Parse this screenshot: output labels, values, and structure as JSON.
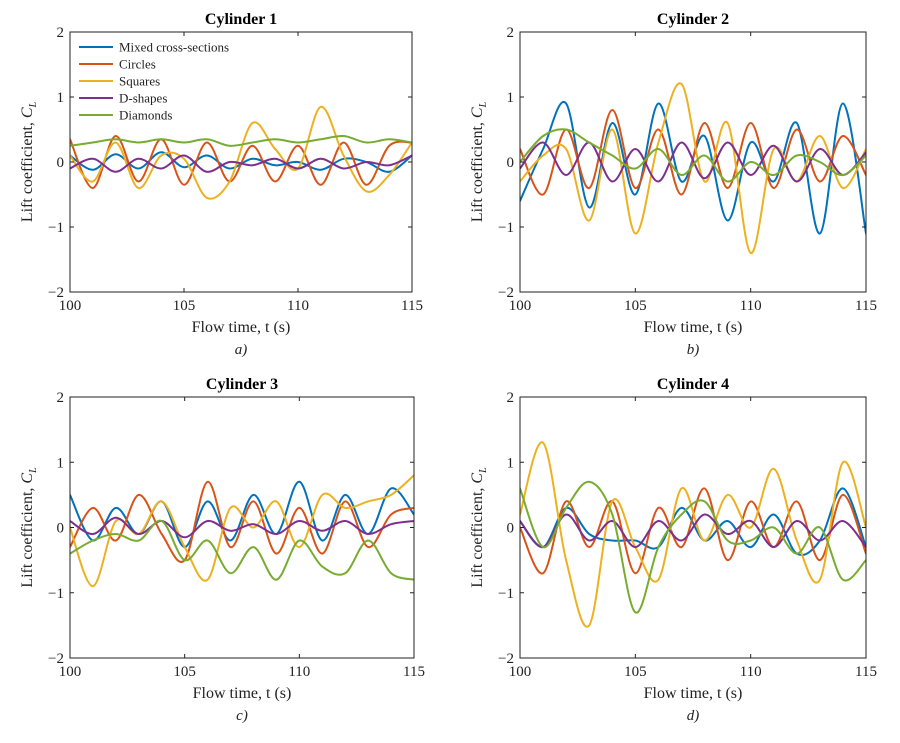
{
  "colors": [
    "#0072BD",
    "#D95319",
    "#EDB120",
    "#7E2F8E",
    "#77AC30"
  ],
  "legend_location": "top-left",
  "chart_data": [
    {
      "type": "line",
      "title": "Cylinder 1",
      "caption": "a)",
      "xlabel": "Flow time, t (s)",
      "ylabel": "Lift coefficient, ",
      "ylabel_symbol": "C",
      "ylabel_sub": "L",
      "xlim": [
        100,
        115
      ],
      "ylim": [
        -2,
        2
      ],
      "xticks": [
        "100",
        "105",
        "110",
        "115"
      ],
      "yticks": [
        "−2",
        "−1",
        "0",
        "1",
        "2"
      ],
      "grid": false,
      "legend": [
        "Mixed cross-sections",
        "Circles",
        "Squares",
        "D-shapes",
        "Diamonds"
      ],
      "series": [
        {
          "x": [
            100,
            101,
            102,
            103,
            104,
            105,
            106,
            107,
            108,
            109,
            110,
            111,
            112,
            113,
            114,
            115
          ],
          "y": [
            0.1,
            -0.12,
            0.12,
            -0.1,
            0.15,
            -0.08,
            0.1,
            -0.1,
            0.05,
            -0.05,
            0.0,
            -0.12,
            0.05,
            0.0,
            -0.15,
            0.1
          ]
        },
        {
          "x": [
            100,
            101,
            102,
            103,
            104,
            105,
            106,
            107,
            108,
            109,
            110,
            111,
            112,
            113,
            114,
            115
          ],
          "y": [
            0.35,
            -0.4,
            0.4,
            -0.3,
            0.35,
            -0.35,
            0.3,
            -0.3,
            0.25,
            -0.3,
            0.25,
            -0.35,
            0.3,
            -0.35,
            0.25,
            0.3
          ]
        },
        {
          "x": [
            100,
            101,
            102,
            103,
            104,
            105,
            106,
            107,
            108,
            109,
            110,
            111,
            112,
            113,
            114,
            115
          ],
          "y": [
            0.1,
            -0.3,
            0.3,
            -0.4,
            0.1,
            0.05,
            -0.55,
            -0.3,
            0.6,
            0.2,
            -0.1,
            0.85,
            0.1,
            -0.45,
            -0.2,
            0.3
          ]
        },
        {
          "x": [
            100,
            101,
            102,
            103,
            104,
            105,
            106,
            107,
            108,
            109,
            110,
            111,
            112,
            113,
            114,
            115
          ],
          "y": [
            -0.1,
            0.05,
            -0.15,
            0.05,
            -0.1,
            0.1,
            -0.15,
            0.0,
            -0.05,
            0.05,
            -0.1,
            0.05,
            -0.1,
            0.0,
            -0.05,
            0.1
          ]
        },
        {
          "x": [
            100,
            101,
            102,
            103,
            104,
            105,
            106,
            107,
            108,
            109,
            110,
            111,
            112,
            113,
            114,
            115
          ],
          "y": [
            0.25,
            0.3,
            0.35,
            0.3,
            0.35,
            0.3,
            0.35,
            0.25,
            0.3,
            0.35,
            0.3,
            0.35,
            0.4,
            0.3,
            0.35,
            0.3
          ]
        }
      ]
    },
    {
      "type": "line",
      "title": "Cylinder 2",
      "caption": "b)",
      "xlabel": "Flow time, t (s)",
      "ylabel": "Lift coefficient, ",
      "ylabel_symbol": "C",
      "ylabel_sub": "L",
      "xlim": [
        100,
        115
      ],
      "ylim": [
        -2,
        2
      ],
      "xticks": [
        "100",
        "105",
        "110",
        "115"
      ],
      "yticks": [
        "−2",
        "−1",
        "0",
        "1",
        "2"
      ],
      "grid": false,
      "series": [
        {
          "x": [
            100,
            101,
            102,
            103,
            104,
            105,
            106,
            107,
            108,
            109,
            110,
            111,
            112,
            113,
            114,
            115
          ],
          "y": [
            -0.6,
            0.2,
            0.9,
            -0.7,
            0.6,
            -0.5,
            0.9,
            -0.3,
            0.4,
            -0.9,
            0.3,
            -0.3,
            0.6,
            -1.1,
            0.9,
            -1.1
          ]
        },
        {
          "x": [
            100,
            101,
            102,
            103,
            104,
            105,
            106,
            107,
            108,
            109,
            110,
            111,
            112,
            113,
            114,
            115
          ],
          "y": [
            0.2,
            -0.5,
            0.5,
            -0.4,
            0.8,
            -0.4,
            0.5,
            -0.5,
            0.6,
            -0.4,
            0.6,
            -0.4,
            0.5,
            -0.3,
            0.4,
            -0.2
          ]
        },
        {
          "x": [
            100,
            101,
            102,
            103,
            104,
            105,
            106,
            107,
            108,
            109,
            110,
            111,
            112,
            113,
            114,
            115
          ],
          "y": [
            -0.3,
            0.1,
            0.2,
            -0.9,
            0.5,
            -1.1,
            0.3,
            1.2,
            -0.3,
            0.6,
            -1.4,
            0.2,
            -0.3,
            0.4,
            -0.4,
            0.2
          ]
        },
        {
          "x": [
            100,
            101,
            102,
            103,
            104,
            105,
            106,
            107,
            108,
            109,
            110,
            111,
            112,
            113,
            114,
            115
          ],
          "y": [
            -0.1,
            0.3,
            -0.2,
            0.3,
            -0.3,
            0.2,
            -0.3,
            0.3,
            -0.25,
            0.3,
            -0.2,
            0.25,
            -0.3,
            0.2,
            -0.2,
            0.15
          ]
        },
        {
          "x": [
            100,
            101,
            102,
            103,
            104,
            105,
            106,
            107,
            108,
            109,
            110,
            111,
            112,
            113,
            114,
            115
          ],
          "y": [
            0.0,
            0.4,
            0.5,
            0.3,
            0.1,
            -0.1,
            0.2,
            -0.2,
            0.1,
            -0.3,
            0.0,
            -0.2,
            0.1,
            0.0,
            -0.2,
            0.1
          ]
        }
      ]
    },
    {
      "type": "line",
      "title": "Cylinder 3",
      "caption": "c)",
      "xlabel": "Flow time, t (s)",
      "ylabel": "Lift coefficient, ",
      "ylabel_symbol": "C",
      "ylabel_sub": "L",
      "xlim": [
        100,
        115
      ],
      "ylim": [
        -2,
        2
      ],
      "xticks": [
        "100",
        "105",
        "110",
        "115"
      ],
      "yticks": [
        "−2",
        "−1",
        "0",
        "1",
        "2"
      ],
      "grid": false,
      "series": [
        {
          "x": [
            100,
            101,
            102,
            103,
            104,
            105,
            106,
            107,
            108,
            109,
            110,
            111,
            112,
            113,
            114,
            115
          ],
          "y": [
            0.5,
            -0.2,
            0.3,
            -0.1,
            0.4,
            -0.3,
            0.4,
            -0.2,
            0.5,
            -0.1,
            0.7,
            -0.2,
            0.5,
            -0.1,
            0.6,
            0.2
          ]
        },
        {
          "x": [
            100,
            101,
            102,
            103,
            104,
            105,
            106,
            107,
            108,
            109,
            110,
            111,
            112,
            113,
            114,
            115
          ],
          "y": [
            -0.3,
            0.3,
            -0.2,
            0.5,
            -0.1,
            -0.5,
            0.7,
            -0.3,
            0.4,
            -0.4,
            0.3,
            -0.4,
            0.4,
            -0.3,
            0.2,
            0.3
          ]
        },
        {
          "x": [
            100,
            101,
            102,
            103,
            104,
            105,
            106,
            107,
            108,
            109,
            110,
            111,
            112,
            113,
            114,
            115
          ],
          "y": [
            0.0,
            -0.9,
            0.1,
            -0.1,
            0.4,
            -0.3,
            -0.8,
            0.3,
            0.0,
            0.4,
            -0.3,
            0.5,
            0.3,
            0.4,
            0.5,
            0.8
          ]
        },
        {
          "x": [
            100,
            101,
            102,
            103,
            104,
            105,
            106,
            107,
            108,
            109,
            110,
            111,
            112,
            113,
            114,
            115
          ],
          "y": [
            0.1,
            -0.1,
            0.15,
            -0.1,
            0.1,
            -0.15,
            0.1,
            -0.05,
            0.05,
            -0.1,
            0.1,
            -0.05,
            0.1,
            -0.1,
            0.05,
            0.1
          ]
        },
        {
          "x": [
            100,
            101,
            102,
            103,
            104,
            105,
            106,
            107,
            108,
            109,
            110,
            111,
            112,
            113,
            114,
            115
          ],
          "y": [
            -0.4,
            -0.2,
            -0.1,
            -0.2,
            0.1,
            -0.5,
            -0.2,
            -0.7,
            -0.3,
            -0.8,
            -0.2,
            -0.6,
            -0.7,
            -0.2,
            -0.7,
            -0.8
          ]
        }
      ]
    },
    {
      "type": "line",
      "title": "Cylinder 4",
      "caption": "d)",
      "xlabel": "Flow time, t (s)",
      "ylabel": "Lift coefficient, ",
      "ylabel_symbol": "C",
      "ylabel_sub": "L",
      "xlim": [
        100,
        115
      ],
      "ylim": [
        -2,
        2
      ],
      "xticks": [
        "100",
        "105",
        "110",
        "115"
      ],
      "yticks": [
        "−2",
        "−1",
        "0",
        "1",
        "2"
      ],
      "grid": false,
      "series": [
        {
          "x": [
            100,
            101,
            102,
            103,
            104,
            105,
            106,
            107,
            108,
            109,
            110,
            111,
            112,
            113,
            114,
            115
          ],
          "y": [
            0.1,
            -0.3,
            0.3,
            -0.1,
            -0.2,
            -0.2,
            -0.3,
            0.3,
            -0.2,
            0.1,
            -0.3,
            0.2,
            -0.4,
            -0.2,
            0.6,
            -0.3
          ]
        },
        {
          "x": [
            100,
            101,
            102,
            103,
            104,
            105,
            106,
            107,
            108,
            109,
            110,
            111,
            112,
            113,
            114,
            115
          ],
          "y": [
            0.0,
            -0.7,
            0.4,
            -0.3,
            0.4,
            -0.7,
            0.3,
            -0.3,
            0.6,
            -0.5,
            0.4,
            -0.3,
            0.4,
            -0.5,
            0.5,
            -0.4
          ]
        },
        {
          "x": [
            100,
            101,
            102,
            103,
            104,
            105,
            106,
            107,
            108,
            109,
            110,
            111,
            112,
            113,
            114,
            115
          ],
          "y": [
            0.2,
            1.3,
            -0.5,
            -1.5,
            0.4,
            -0.3,
            -0.8,
            0.6,
            -0.2,
            0.5,
            0.0,
            0.9,
            -0.2,
            -0.8,
            1.0,
            0.0
          ]
        },
        {
          "x": [
            100,
            101,
            102,
            103,
            104,
            105,
            106,
            107,
            108,
            109,
            110,
            111,
            112,
            113,
            114,
            115
          ],
          "y": [
            0.1,
            -0.3,
            0.2,
            -0.2,
            0.1,
            -0.3,
            0.1,
            -0.2,
            0.2,
            -0.1,
            0.1,
            -0.3,
            0.1,
            -0.2,
            0.1,
            -0.3
          ]
        },
        {
          "x": [
            100,
            101,
            102,
            103,
            104,
            105,
            106,
            107,
            108,
            109,
            110,
            111,
            112,
            113,
            114,
            115
          ],
          "y": [
            0.6,
            -0.3,
            0.3,
            0.7,
            0.2,
            -1.3,
            -0.3,
            0.2,
            0.4,
            -0.2,
            -0.2,
            0.0,
            -0.4,
            0.0,
            -0.8,
            -0.5
          ]
        }
      ]
    }
  ]
}
